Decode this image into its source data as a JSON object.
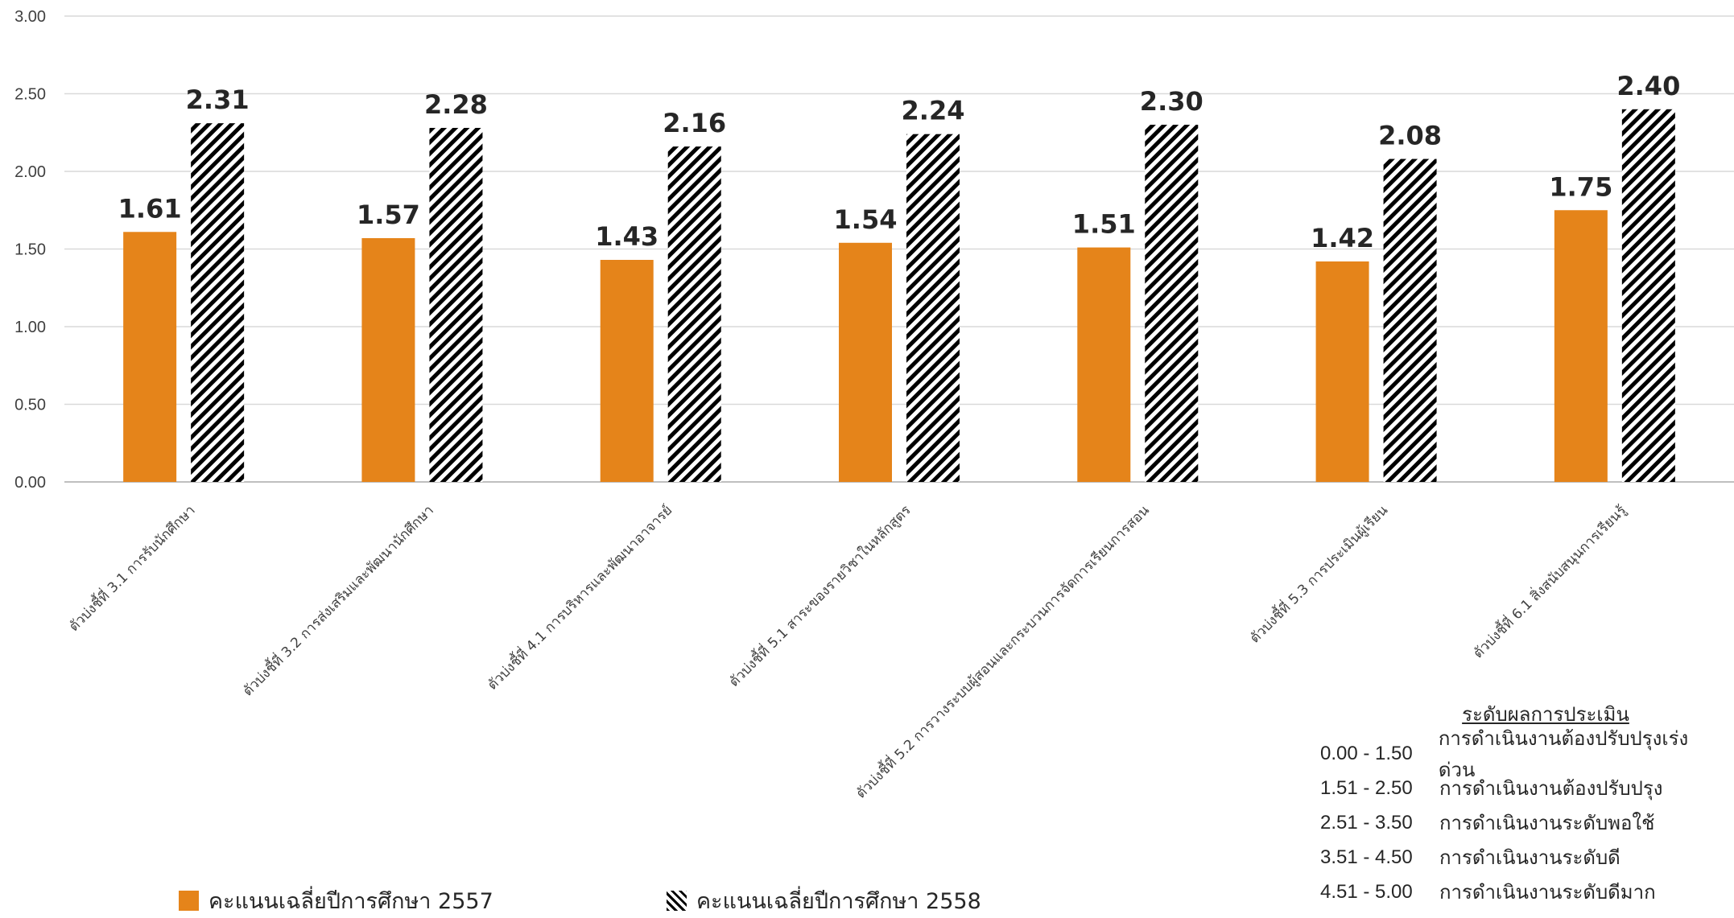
{
  "chart_data": {
    "type": "bar",
    "title": "",
    "xlabel": "",
    "ylabel": "",
    "ylim": [
      0,
      3
    ],
    "yticks": [
      "0.00",
      "0.50",
      "1.00",
      "1.50",
      "2.00",
      "2.50",
      "3.00"
    ],
    "grid": true,
    "categories": [
      "ตัวบ่งชี้ที่ 3.1 การรับนักศึกษา",
      "ตัวบ่งชี้ที่ 3.2 การส่งเสริมและพัฒนานักศึกษา",
      "ตัวบ่งชี้ที่ 4.1 การบริหารและพัฒนาอาจารย์",
      "ตัวบ่งชี้ที่ 5.1 สาระของรายวิชาในหลักสูตร",
      "ตัวบ่งชี้ที่ 5.2 การวางระบบผู้สอนและกระบวนการจัดการเรียนการสอน",
      "ตัวบ่งชี้ที่ 5.3 การประเมินผู้เรียน",
      "ตัวบ่งชี้ที่ 6.1 สิ่งสนับสนุนการเรียนรู้"
    ],
    "series": [
      {
        "name": "คะแนนเฉลี่ยปีการศึกษา 2557",
        "color": "#E5841A",
        "values": [
          1.61,
          1.57,
          1.43,
          1.54,
          1.51,
          1.42,
          1.75
        ]
      },
      {
        "name": "คะแนนเฉลี่ยปีการศึกษา 2558",
        "pattern": "diagonal-black-stripes",
        "values": [
          2.31,
          2.28,
          2.16,
          2.24,
          2.3,
          2.08,
          2.4
        ]
      }
    ],
    "legend_position": "bottom-left"
  },
  "scale": {
    "title": "ระดับผลการประเมิน",
    "rows": [
      {
        "range": "0.00 - 1.50",
        "label": "การดำเนินงานต้องปรับปรุงเร่งด่วน"
      },
      {
        "range": "1.51 - 2.50",
        "label": "การดำเนินงานต้องปรับปรุง"
      },
      {
        "range": "2.51 - 3.50",
        "label": "การดำเนินงานระดับพอใช้"
      },
      {
        "range": "3.51 - 4.50",
        "label": "การดำเนินงานระดับดี"
      },
      {
        "range": "4.51 - 5.00",
        "label": "การดำเนินงานระดับดีมาก"
      }
    ]
  }
}
